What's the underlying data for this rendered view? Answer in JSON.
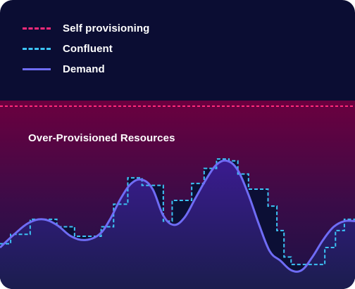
{
  "legend": {
    "items": [
      {
        "label": "Self provisioning",
        "style": "dashed",
        "color": "#ff2a7a"
      },
      {
        "label": "Confluent",
        "style": "dashed",
        "color": "#3cc3f5"
      },
      {
        "label": "Demand",
        "style": "solid",
        "color": "#6f6cf5"
      }
    ]
  },
  "chart": {
    "region_label": "Over-Provisioned Resources"
  },
  "colors": {
    "background": "#0b0d33",
    "overprovision_top": "#6b003f",
    "demand_fill_top": "#3a1b8f",
    "demand_line": "#6f6cf5",
    "confluent_line": "#3cc3f5",
    "self_provisioning_line": "#ff2a7a"
  },
  "chart_data": {
    "type": "line",
    "title": "",
    "xlabel": "",
    "ylabel": "",
    "xlim": [
      0,
      100
    ],
    "ylim": [
      0,
      100
    ],
    "series": [
      {
        "name": "Self provisioning",
        "style": "dashed",
        "x": [
          0,
          100
        ],
        "values": [
          97,
          97
        ]
      },
      {
        "name": "Confluent",
        "style": "stepped-dashed",
        "x": [
          0,
          3,
          8.5,
          16,
          21,
          28.5,
          32,
          36,
          40,
          46,
          48.5,
          54,
          57.5,
          61,
          64.5,
          67,
          70,
          75.5,
          78,
          80,
          82,
          86,
          91.5,
          94.5,
          97
        ],
        "values": [
          24,
          29,
          37,
          33,
          28,
          33,
          45,
          59,
          55,
          36,
          47,
          56,
          64,
          69,
          68,
          61,
          53,
          44,
          31,
          17,
          13,
          13,
          22,
          31,
          37
        ]
      },
      {
        "name": "Demand",
        "style": "smooth",
        "x": [
          0,
          4,
          8,
          12,
          16,
          20,
          24,
          28,
          31,
          34,
          37,
          40,
          43,
          46,
          49,
          52,
          55,
          58,
          61,
          64,
          67,
          70,
          73,
          76,
          79,
          82,
          85,
          88,
          91,
          94,
          97,
          100
        ],
        "values": [
          22,
          29,
          35,
          37,
          34,
          28,
          26,
          29,
          37,
          48,
          56,
          58,
          53,
          39,
          34,
          38,
          48,
          58,
          66,
          68,
          63,
          50,
          34,
          20,
          15,
          10,
          10,
          17,
          26,
          33,
          36,
          36
        ]
      }
    ]
  }
}
